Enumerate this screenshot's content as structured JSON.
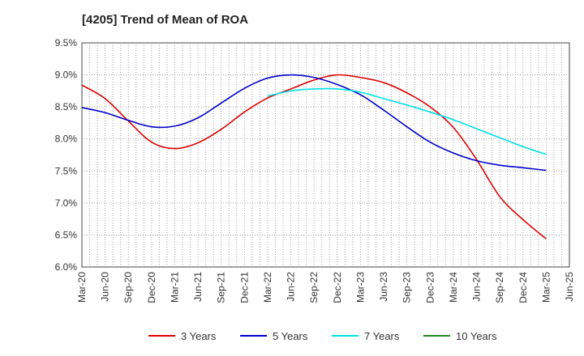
{
  "chart_data": {
    "type": "line",
    "title": "[4205]  Trend of Mean of ROA",
    "xlabel": "",
    "ylabel": "",
    "ylim": [
      6.0,
      9.5
    ],
    "y_ticks": [
      "6.0%",
      "6.5%",
      "7.0%",
      "7.5%",
      "8.0%",
      "8.5%",
      "9.0%",
      "9.5%"
    ],
    "categories": [
      "Mar-20",
      "Jun-20",
      "Sep-20",
      "Dec-20",
      "Mar-21",
      "Jun-21",
      "Sep-21",
      "Dec-21",
      "Mar-22",
      "Jun-22",
      "Sep-22",
      "Dec-22",
      "Mar-23",
      "Jun-23",
      "Sep-23",
      "Dec-23",
      "Mar-24",
      "Jun-24",
      "Sep-24",
      "Dec-24",
      "Mar-25",
      "Jun-25"
    ],
    "grid": true,
    "legend_position": "bottom",
    "series": [
      {
        "name": "3 Years",
        "color": "#dd0000",
        "values": [
          8.84,
          8.63,
          8.28,
          7.95,
          7.85,
          7.94,
          8.15,
          8.42,
          8.64,
          8.78,
          8.92,
          9.0,
          8.96,
          8.88,
          8.72,
          8.5,
          8.18,
          7.68,
          7.1,
          6.74,
          6.44,
          null
        ]
      },
      {
        "name": "5 Years",
        "color": "#0000cc",
        "values": [
          8.49,
          8.41,
          8.29,
          8.19,
          8.2,
          8.33,
          8.56,
          8.79,
          8.95,
          9.0,
          8.96,
          8.85,
          8.69,
          8.45,
          8.19,
          7.95,
          7.78,
          7.66,
          7.59,
          7.55,
          7.51,
          null
        ]
      },
      {
        "name": "7 Years",
        "color": "#00e0e6",
        "values": [
          null,
          null,
          null,
          null,
          null,
          null,
          null,
          null,
          8.67,
          8.75,
          8.78,
          8.78,
          8.73,
          8.63,
          8.53,
          8.42,
          8.3,
          8.16,
          8.02,
          7.88,
          7.76,
          null
        ]
      },
      {
        "name": "10 Years",
        "color": "#228b22",
        "values": [
          null,
          null,
          null,
          null,
          null,
          null,
          null,
          null,
          null,
          null,
          null,
          null,
          null,
          null,
          null,
          null,
          null,
          null,
          null,
          null,
          null,
          null
        ]
      }
    ]
  }
}
